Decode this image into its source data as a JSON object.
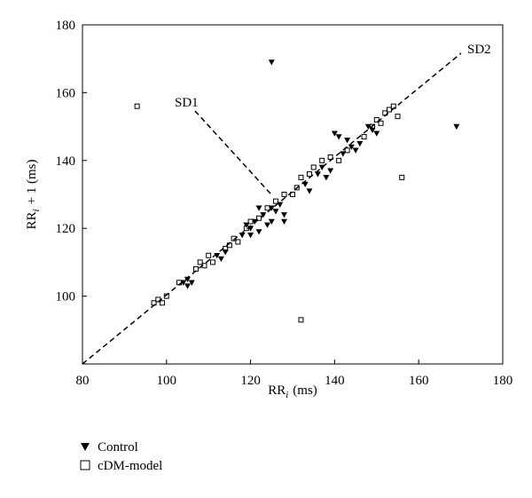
{
  "chart_data": {
    "type": "scatter",
    "x_label": [
      "RR",
      "i",
      "(ms)"
    ],
    "y_label": [
      "RR",
      "i",
      "+ 1 (ms)"
    ],
    "annotations": [
      "SD1",
      "SD2"
    ],
    "xlim": [
      80,
      180
    ],
    "xticks": [
      80,
      100,
      120,
      140,
      160,
      180
    ],
    "ylim": [
      80,
      180
    ],
    "yticks": [
      100,
      120,
      140,
      160,
      180
    ],
    "series": [
      {
        "name": "Control",
        "color": "#000000",
        "marker": "triangle-down",
        "x": [
          104,
          105,
          106,
          105,
          112,
          113,
          114,
          118,
          120,
          121,
          122,
          123,
          124,
          125,
          126,
          127,
          128,
          120,
          119,
          125,
          133,
          134,
          136,
          137,
          138,
          139,
          144,
          145,
          146,
          143,
          142,
          149,
          150,
          148,
          140,
          141,
          125,
          169,
          128,
          122
        ],
        "y": [
          104,
          105,
          104,
          103,
          112,
          111,
          113,
          118,
          120,
          122,
          119,
          124,
          121,
          126,
          125,
          127,
          124,
          118,
          121,
          122,
          133,
          131,
          136,
          138,
          135,
          137,
          144,
          143,
          145,
          146,
          142,
          149,
          148,
          150,
          148,
          147,
          169,
          150,
          122,
          126
        ]
      },
      {
        "name": "cDM-model",
        "color": "#000000",
        "marker": "square",
        "x": [
          97,
          98,
          99,
          100,
          103,
          107,
          108,
          109,
          110,
          111,
          114,
          115,
          116,
          117,
          119,
          120,
          122,
          124,
          126,
          128,
          130,
          131,
          132,
          134,
          135,
          137,
          139,
          141,
          143,
          147,
          150,
          152,
          153,
          154,
          155,
          151,
          149,
          93,
          156,
          132
        ],
        "y": [
          98,
          99,
          98,
          100,
          104,
          108,
          110,
          109,
          112,
          110,
          114,
          115,
          117,
          116,
          120,
          122,
          123,
          126,
          128,
          130,
          130,
          132,
          135,
          136,
          138,
          140,
          141,
          140,
          143,
          147,
          152,
          154,
          155,
          156,
          153,
          151,
          150,
          156,
          135,
          93
        ]
      }
    ]
  }
}
